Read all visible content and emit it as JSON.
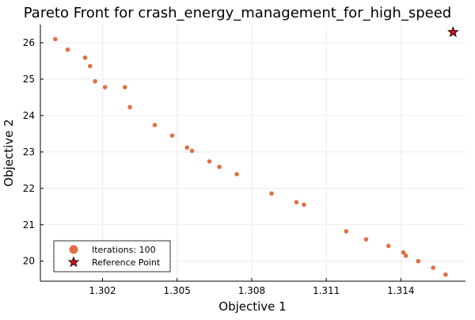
{
  "chart_data": {
    "type": "scatter",
    "title": "Pareto Front for crash_energy_management_for_high_speed",
    "xlabel": "Objective 1",
    "ylabel": "Objective 2",
    "xlim": [
      1.2995,
      1.3166
    ],
    "ylim": [
      19.45,
      26.5
    ],
    "xticks": [
      1.302,
      1.305,
      1.308,
      1.311,
      1.314
    ],
    "xtick_labels": [
      "1.302",
      "1.305",
      "1.308",
      "1.311",
      "1.314"
    ],
    "yticks": [
      20,
      21,
      22,
      23,
      24,
      25,
      26
    ],
    "ytick_labels": [
      "20",
      "21",
      "22",
      "23",
      "24",
      "25",
      "26"
    ],
    "grid": true,
    "legend_position": "bottom-left",
    "series": [
      {
        "name": "Iterations: 100",
        "marker": "circle",
        "color": "#e26f46",
        "points": [
          [
            1.3001,
            26.1
          ],
          [
            1.3006,
            25.81
          ],
          [
            1.3013,
            25.59
          ],
          [
            1.3015,
            25.36
          ],
          [
            1.3017,
            24.94
          ],
          [
            1.3021,
            24.78
          ],
          [
            1.3029,
            24.78
          ],
          [
            1.3031,
            24.23
          ],
          [
            1.3041,
            23.74
          ],
          [
            1.3048,
            23.45
          ],
          [
            1.3054,
            23.12
          ],
          [
            1.3056,
            23.03
          ],
          [
            1.3063,
            22.74
          ],
          [
            1.3067,
            22.59
          ],
          [
            1.3074,
            22.39
          ],
          [
            1.3088,
            21.86
          ],
          [
            1.3098,
            21.62
          ],
          [
            1.3101,
            21.55
          ],
          [
            1.3118,
            20.82
          ],
          [
            1.3126,
            20.6
          ],
          [
            1.3135,
            20.42
          ],
          [
            1.3141,
            20.24
          ],
          [
            1.3142,
            20.15
          ],
          [
            1.3147,
            20.0
          ],
          [
            1.3153,
            19.82
          ],
          [
            1.3158,
            19.63
          ]
        ]
      },
      {
        "name": "Reference Point",
        "marker": "star",
        "color": "#c8101c",
        "points": [
          [
            1.3161,
            26.29
          ]
        ]
      }
    ]
  }
}
